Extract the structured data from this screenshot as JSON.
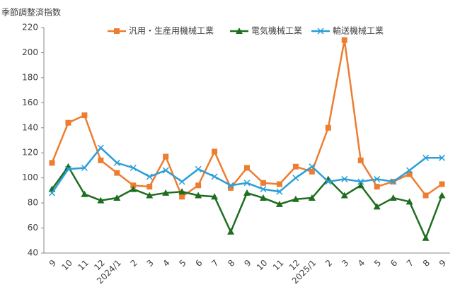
{
  "chart_data": {
    "type": "line",
    "ylabel": "季節調整済指数",
    "categories": [
      "9",
      "10",
      "11",
      "12",
      "2024/1",
      "2",
      "3",
      "4",
      "5",
      "6",
      "7",
      "8",
      "9",
      "10",
      "11",
      "12",
      "2025/1",
      "2",
      "3",
      "4",
      "5",
      "6",
      "7",
      "8",
      "9"
    ],
    "series": [
      {
        "name": "汎用・生産用機械工業",
        "color": "#ed7d31",
        "marker": "square",
        "values": [
          112,
          144,
          150,
          114,
          104,
          94,
          93,
          117,
          85,
          94,
          121,
          92,
          108,
          96,
          95,
          109,
          105,
          140,
          210,
          114,
          93,
          97,
          103,
          86,
          95
        ]
      },
      {
        "name": "電気機械工業",
        "color": "#1f6e1f",
        "marker": "triangle",
        "values": [
          91,
          109,
          87,
          82,
          84,
          91,
          86,
          88,
          89,
          86,
          85,
          57,
          88,
          84,
          79,
          83,
          84,
          99,
          86,
          94,
          77,
          84,
          81,
          52,
          86
        ]
      },
      {
        "name": "輸送機械工業",
        "color": "#2a9fd8",
        "marker": "x",
        "values": [
          88,
          107,
          108,
          124,
          112,
          108,
          101,
          106,
          97,
          107,
          101,
          94,
          96,
          91,
          89,
          100,
          109,
          97,
          99,
          97,
          99,
          97,
          106,
          116,
          116
        ]
      }
    ],
    "ylim": [
      40,
      220
    ],
    "yticks": [
      40,
      60,
      80,
      100,
      120,
      140,
      160,
      180,
      200,
      220
    ],
    "grid": false,
    "legend": "top"
  }
}
